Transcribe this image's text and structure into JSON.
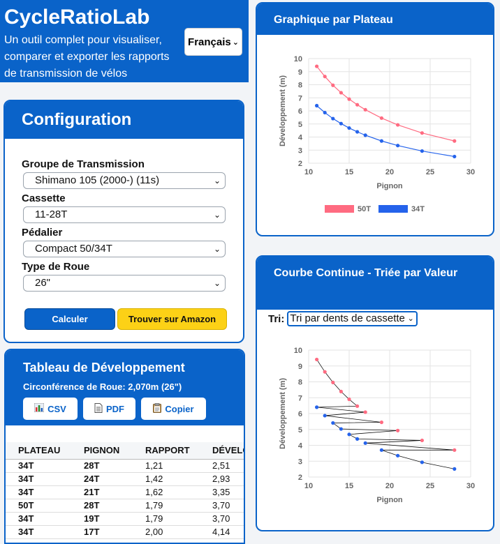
{
  "header": {
    "title": "CycleRatioLab",
    "description": "Un outil complet pour visualiser, comparer et exporter les rapports de transmission de vélos",
    "language": "Français"
  },
  "config": {
    "title": "Configuration",
    "groupset_label": "Groupe de Transmission",
    "groupset_value": "Shimano 105 (2000-) (11s)",
    "cassette_label": "Cassette",
    "cassette_value": "11-28T",
    "crankset_label": "Pédalier",
    "crankset_value": "Compact 50/34T",
    "wheel_label": "Type de Roue",
    "wheel_value": "26\"",
    "calc_label": "Calculer",
    "amazon_label": "Trouver sur Amazon"
  },
  "table": {
    "title": "Tableau de Développement",
    "circumference": "Circonférence de Roue: 2,070m (26\")",
    "export_csv": "CSV",
    "export_pdf": "PDF",
    "export_copy": "Copier",
    "headers": [
      "PLATEAU",
      "PIGNON",
      "RAPPORT",
      "DÉVELO"
    ],
    "rows": [
      [
        "34T",
        "28T",
        "1,21",
        "2,51"
      ],
      [
        "34T",
        "24T",
        "1,42",
        "2,93"
      ],
      [
        "34T",
        "21T",
        "1,62",
        "3,35"
      ],
      [
        "50T",
        "28T",
        "1,79",
        "3,70"
      ],
      [
        "34T",
        "19T",
        "1,79",
        "3,70"
      ],
      [
        "34T",
        "17T",
        "2,00",
        "4,14"
      ]
    ]
  },
  "chart1": {
    "title": "Graphique par Plateau"
  },
  "chart2": {
    "title": "Courbe Continue - Triée par Valeur",
    "sort_label": "Tri:",
    "sort_value": "Tri par dents de cassette"
  },
  "colors": {
    "primary": "#0a63c9",
    "amazon": "#fcd116",
    "series_50": "#ff6b81",
    "series_34": "#2563eb"
  },
  "chart_data": [
    {
      "type": "line",
      "ylabel": "Développement (m)",
      "xlabel": "Pignon",
      "xlim": [
        10,
        30
      ],
      "ylim": [
        2,
        10
      ],
      "xticks": [
        10,
        15,
        20,
        25,
        30
      ],
      "yticks": [
        2,
        3,
        4,
        5,
        6,
        7,
        8,
        9,
        10
      ],
      "grid": true,
      "legend": "bottom",
      "series": [
        {
          "name": "50T",
          "color": "#ff6b81",
          "x": [
            11,
            12,
            13,
            14,
            15,
            16,
            17,
            19,
            21,
            24,
            28
          ],
          "y": [
            9.41,
            8.63,
            7.96,
            7.39,
            6.9,
            6.47,
            6.09,
            5.45,
            4.93,
            4.31,
            3.7
          ]
        },
        {
          "name": "34T",
          "color": "#2563eb",
          "x": [
            11,
            12,
            13,
            14,
            15,
            16,
            17,
            19,
            21,
            24,
            28
          ],
          "y": [
            6.4,
            5.87,
            5.41,
            5.03,
            4.69,
            4.4,
            4.14,
            3.7,
            3.35,
            2.93,
            2.51
          ]
        }
      ]
    },
    {
      "type": "line",
      "ylabel": "Développement (m)",
      "xlabel": "Pignon",
      "xlim": [
        10,
        30
      ],
      "ylim": [
        2,
        10
      ],
      "xticks": [
        10,
        15,
        20,
        25,
        30
      ],
      "yticks": [
        2,
        3,
        4,
        5,
        6,
        7,
        8,
        9,
        10
      ],
      "grid": true,
      "points": [
        {
          "x": 11,
          "y": 9.41,
          "c": "#ff6b81"
        },
        {
          "x": 12,
          "y": 8.63,
          "c": "#ff6b81"
        },
        {
          "x": 13,
          "y": 7.96,
          "c": "#ff6b81"
        },
        {
          "x": 14,
          "y": 7.39,
          "c": "#ff6b81"
        },
        {
          "x": 15,
          "y": 6.9,
          "c": "#ff6b81"
        },
        {
          "x": 16,
          "y": 6.47,
          "c": "#ff6b81"
        },
        {
          "x": 11,
          "y": 6.4,
          "c": "#2563eb"
        },
        {
          "x": 17,
          "y": 6.09,
          "c": "#ff6b81"
        },
        {
          "x": 12,
          "y": 5.87,
          "c": "#2563eb"
        },
        {
          "x": 19,
          "y": 5.45,
          "c": "#ff6b81"
        },
        {
          "x": 13,
          "y": 5.41,
          "c": "#2563eb"
        },
        {
          "x": 14,
          "y": 5.03,
          "c": "#2563eb"
        },
        {
          "x": 21,
          "y": 4.93,
          "c": "#ff6b81"
        },
        {
          "x": 15,
          "y": 4.69,
          "c": "#2563eb"
        },
        {
          "x": 16,
          "y": 4.4,
          "c": "#2563eb"
        },
        {
          "x": 24,
          "y": 4.31,
          "c": "#ff6b81"
        },
        {
          "x": 17,
          "y": 4.14,
          "c": "#2563eb"
        },
        {
          "x": 28,
          "y": 3.7,
          "c": "#ff6b81"
        },
        {
          "x": 19,
          "y": 3.7,
          "c": "#2563eb"
        },
        {
          "x": 21,
          "y": 3.35,
          "c": "#2563eb"
        },
        {
          "x": 24,
          "y": 2.93,
          "c": "#2563eb"
        },
        {
          "x": 28,
          "y": 2.51,
          "c": "#2563eb"
        }
      ]
    }
  ]
}
